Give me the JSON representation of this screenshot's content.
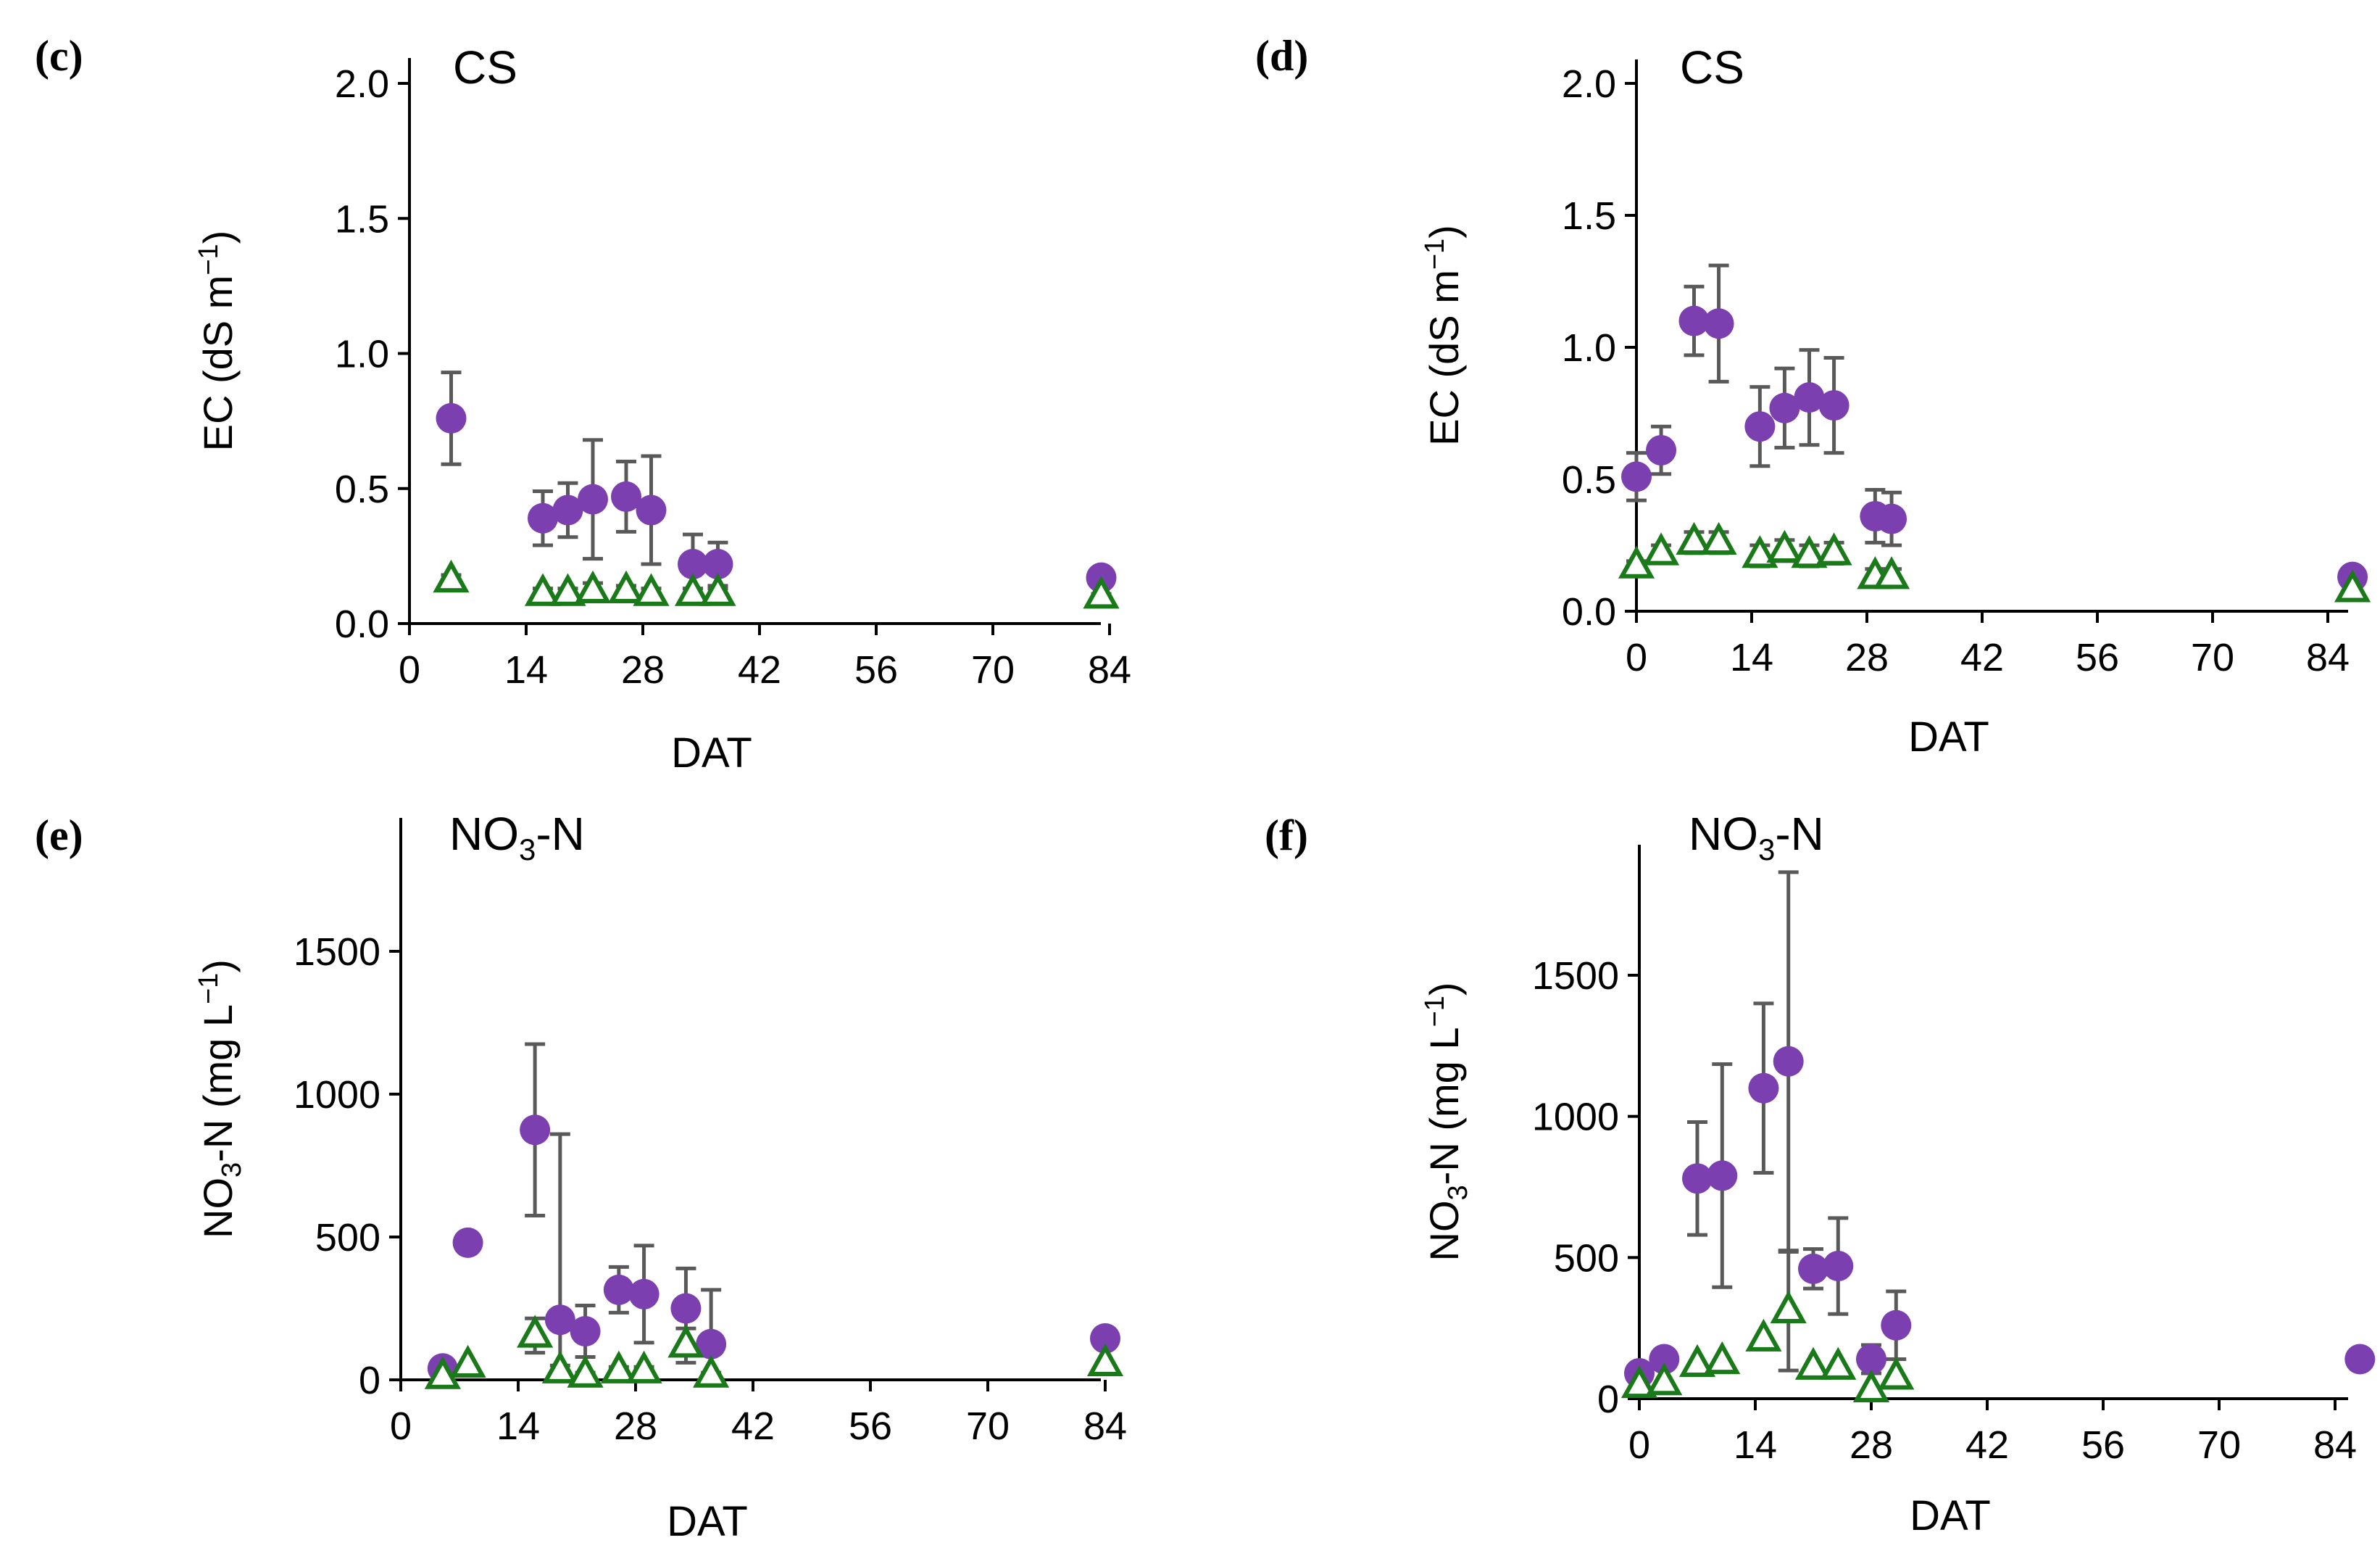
{
  "colors": {
    "circle_fill": "#7b3fb0",
    "triangle_stroke": "#1a7a1a",
    "error_bar": "#595959",
    "axis": "#000000"
  },
  "chart_data": [
    {
      "type": "scatter",
      "panel_label": "(c)",
      "title": "CS",
      "xlabel": "DAT",
      "ylabel_main": "EC  (dS m",
      "ylabel_sup": "−1",
      "ylabel_tail": ")",
      "xlim": [
        0,
        84
      ],
      "ylim": [
        0,
        2.0
      ],
      "xticks": [
        0,
        14,
        28,
        42,
        56,
        70,
        84
      ],
      "xtick_labels": [
        "0",
        "14",
        "28",
        "42",
        "56",
        "70",
        "84"
      ],
      "yticks": [
        0,
        0.5,
        1.0,
        1.5,
        2.0
      ],
      "ytick_labels": [
        "0.0",
        "0.5",
        "1.0",
        "1.5",
        "2.0"
      ],
      "series": [
        {
          "name": "circles",
          "marker": "circle",
          "points": [
            {
              "x": 5,
              "y": 0.76,
              "err": 0.17
            },
            {
              "x": 16,
              "y": 0.39,
              "err": 0.1
            },
            {
              "x": 19,
              "y": 0.42,
              "err": 0.1
            },
            {
              "x": 22,
              "y": 0.46,
              "err": 0.22
            },
            {
              "x": 26,
              "y": 0.47,
              "err": 0.13
            },
            {
              "x": 29,
              "y": 0.42,
              "err": 0.2
            },
            {
              "x": 34,
              "y": 0.22,
              "err": 0.11
            },
            {
              "x": 37,
              "y": 0.22,
              "err": 0.08
            },
            {
              "x": 83,
              "y": 0.17,
              "err": 0.03
            }
          ]
        },
        {
          "name": "triangles",
          "marker": "triangle",
          "points": [
            {
              "x": 5,
              "y": 0.16,
              "err": 0.02
            },
            {
              "x": 16,
              "y": 0.11,
              "err": 0.02
            },
            {
              "x": 19,
              "y": 0.11,
              "err": 0.02
            },
            {
              "x": 22,
              "y": 0.12,
              "err": 0.03
            },
            {
              "x": 26,
              "y": 0.12,
              "err": 0.02
            },
            {
              "x": 29,
              "y": 0.11,
              "err": 0.02
            },
            {
              "x": 34,
              "y": 0.11,
              "err": 0.02
            },
            {
              "x": 37,
              "y": 0.11,
              "err": 0.02
            },
            {
              "x": 83,
              "y": 0.1,
              "err": 0.01
            }
          ]
        }
      ]
    },
    {
      "type": "scatter",
      "panel_label": "(d)",
      "title": "CS",
      "xlabel": "DAT",
      "ylabel_main": "EC  (dS m",
      "ylabel_sup": "−1",
      "ylabel_tail": ")",
      "xlim": [
        0,
        87
      ],
      "ylim": [
        0,
        2.0
      ],
      "xticks": [
        0,
        14,
        28,
        42,
        56,
        70,
        84
      ],
      "xtick_labels": [
        "0",
        "14",
        "28",
        "42",
        "56",
        "70",
        "84"
      ],
      "yticks": [
        0,
        0.5,
        1.0,
        1.5,
        2.0
      ],
      "ytick_labels": [
        "0.0",
        "0.5",
        "1.0",
        "1.5",
        "2.0"
      ],
      "series": [
        {
          "name": "circles",
          "marker": "circle",
          "points": [
            {
              "x": 0,
              "y": 0.51,
              "err": 0.09
            },
            {
              "x": 3,
              "y": 0.61,
              "err": 0.09
            },
            {
              "x": 7,
              "y": 1.1,
              "err": 0.13
            },
            {
              "x": 10,
              "y": 1.09,
              "err": 0.22
            },
            {
              "x": 15,
              "y": 0.7,
              "err": 0.15
            },
            {
              "x": 18,
              "y": 0.77,
              "err": 0.15
            },
            {
              "x": 21,
              "y": 0.81,
              "err": 0.18
            },
            {
              "x": 24,
              "y": 0.78,
              "err": 0.18
            },
            {
              "x": 29,
              "y": 0.36,
              "err": 0.1
            },
            {
              "x": 31,
              "y": 0.35,
              "err": 0.1
            },
            {
              "x": 87,
              "y": 0.13,
              "err": 0.02
            }
          ]
        },
        {
          "name": "triangles",
          "marker": "triangle",
          "points": [
            {
              "x": 0,
              "y": 0.17,
              "err": 0.02
            },
            {
              "x": 3,
              "y": 0.22,
              "err": 0.03
            },
            {
              "x": 7,
              "y": 0.26,
              "err": 0.04
            },
            {
              "x": 10,
              "y": 0.26,
              "err": 0.04
            },
            {
              "x": 15,
              "y": 0.21,
              "err": 0.04
            },
            {
              "x": 18,
              "y": 0.23,
              "err": 0.04
            },
            {
              "x": 21,
              "y": 0.21,
              "err": 0.04
            },
            {
              "x": 24,
              "y": 0.22,
              "err": 0.04
            },
            {
              "x": 29,
              "y": 0.13,
              "err": 0.03
            },
            {
              "x": 31,
              "y": 0.13,
              "err": 0.03
            },
            {
              "x": 87,
              "y": 0.08,
              "err": 0.01
            }
          ]
        }
      ]
    },
    {
      "type": "scatter",
      "panel_label": "(e)",
      "title_main": "NO",
      "title_sub": "3",
      "title_tail": "-N",
      "xlabel": "DAT",
      "ylabel_main": "NO",
      "ylabel_sub": "3",
      "ylabel_mid": "-N (mg L",
      "ylabel_sup": "−1",
      "ylabel_tail": ")",
      "xlim": [
        0,
        84
      ],
      "ylim": [
        0,
        1900
      ],
      "xticks": [
        0,
        14,
        28,
        42,
        56,
        70,
        84
      ],
      "xtick_labels": [
        "0",
        "14",
        "28",
        "42",
        "56",
        "70",
        "84"
      ],
      "yticks": [
        0,
        500,
        1000,
        1500
      ],
      "ytick_labels": [
        "0",
        "500",
        "1000",
        "1500"
      ],
      "series": [
        {
          "name": "circles",
          "marker": "circle",
          "points": [
            {
              "x": 5,
              "y": 40,
              "err": 0
            },
            {
              "x": 8,
              "y": 480,
              "err": 0
            },
            {
              "x": 16,
              "y": 875,
              "err": 300
            },
            {
              "x": 19,
              "y": 210,
              "err": 650
            },
            {
              "x": 22,
              "y": 170,
              "err": 90
            },
            {
              "x": 26,
              "y": 315,
              "err": 80
            },
            {
              "x": 29,
              "y": 300,
              "err": 170
            },
            {
              "x": 34,
              "y": 250,
              "err": 140
            },
            {
              "x": 37,
              "y": 125,
              "err": 190
            },
            {
              "x": 84,
              "y": 145,
              "err": 0
            }
          ]
        },
        {
          "name": "triangles",
          "marker": "triangle",
          "points": [
            {
              "x": 5,
              "y": 10,
              "err": 0
            },
            {
              "x": 8,
              "y": 50,
              "err": 0
            },
            {
              "x": 16,
              "y": 155,
              "err": 60
            },
            {
              "x": 19,
              "y": 30,
              "err": 20
            },
            {
              "x": 22,
              "y": 15,
              "err": 10
            },
            {
              "x": 26,
              "y": 30,
              "err": 15
            },
            {
              "x": 29,
              "y": 30,
              "err": 15
            },
            {
              "x": 34,
              "y": 120,
              "err": 60
            },
            {
              "x": 37,
              "y": 15,
              "err": 10
            },
            {
              "x": 84,
              "y": 55,
              "err": 0
            }
          ]
        }
      ]
    },
    {
      "type": "scatter",
      "panel_label": "(f)",
      "title_main": "NO",
      "title_sub": "3",
      "title_tail": "-N",
      "xlabel": "DAT",
      "ylabel_main": "NO",
      "ylabel_sub": "3",
      "ylabel_mid": "-N (mg L",
      "ylabel_sup": "−1",
      "ylabel_tail": ")",
      "xlim": [
        0,
        87
      ],
      "ylim": [
        0,
        1950
      ],
      "xticks": [
        0,
        14,
        28,
        42,
        56,
        70,
        84
      ],
      "xtick_labels": [
        "0",
        "14",
        "28",
        "42",
        "56",
        "70",
        "84"
      ],
      "yticks": [
        0,
        500,
        1000,
        1500
      ],
      "ytick_labels": [
        "0",
        "500",
        "1000",
        "1500"
      ],
      "series": [
        {
          "name": "circles",
          "marker": "circle",
          "points": [
            {
              "x": 0,
              "y": 90,
              "err": 0
            },
            {
              "x": 3,
              "y": 140,
              "err": 0
            },
            {
              "x": 7,
              "y": 780,
              "err": 200
            },
            {
              "x": 10,
              "y": 790,
              "err": 395
            },
            {
              "x": 15,
              "y": 1100,
              "err": 300
            },
            {
              "x": 18,
              "y": 1195,
              "err": 670
            },
            {
              "x": 21,
              "y": 460,
              "err": 70
            },
            {
              "x": 24,
              "y": 470,
              "err": 170
            },
            {
              "x": 28,
              "y": 140,
              "err": 50
            },
            {
              "x": 31,
              "y": 260,
              "err": 120
            },
            {
              "x": 87,
              "y": 140,
              "err": 0
            }
          ]
        },
        {
          "name": "triangles",
          "marker": "triangle",
          "points": [
            {
              "x": 0,
              "y": 45,
              "err": 0
            },
            {
              "x": 3,
              "y": 55,
              "err": 0
            },
            {
              "x": 7,
              "y": 120,
              "err": 0
            },
            {
              "x": 10,
              "y": 130,
              "err": 0
            },
            {
              "x": 15,
              "y": 210,
              "err": 0
            },
            {
              "x": 18,
              "y": 310,
              "err": 210
            },
            {
              "x": 21,
              "y": 110,
              "err": 0
            },
            {
              "x": 24,
              "y": 110,
              "err": 0
            },
            {
              "x": 28,
              "y": 30,
              "err": 0
            },
            {
              "x": 31,
              "y": 75,
              "err": 0
            }
          ]
        }
      ]
    }
  ]
}
